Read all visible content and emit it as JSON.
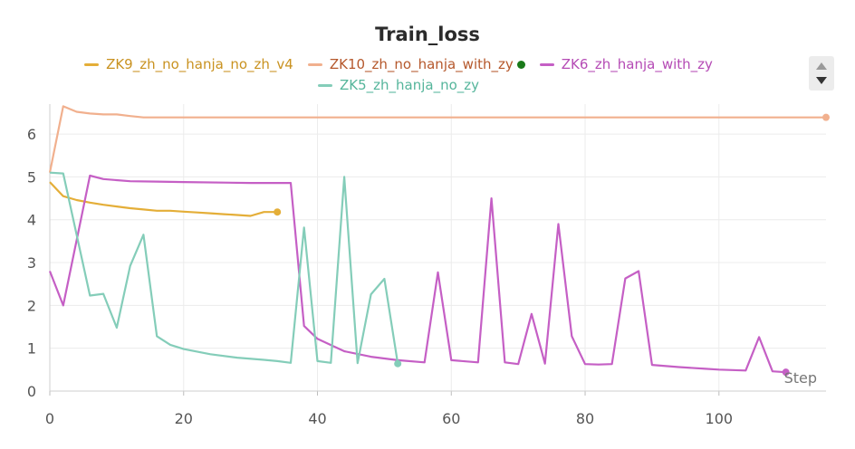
{
  "chart_data": {
    "type": "line",
    "title": "Train_loss",
    "xlabel": "Step",
    "ylabel": "",
    "xlim": [
      0,
      116
    ],
    "ylim": [
      0,
      6.7
    ],
    "x_ticks": [
      0,
      20,
      40,
      60,
      80,
      100
    ],
    "y_ticks": [
      0,
      1,
      2,
      3,
      4,
      5,
      6
    ],
    "grid": true,
    "legend_position": "top",
    "series": [
      {
        "name": "ZK9_zh_no_hanja_no_zh_v4",
        "color": "#e4ae38",
        "x": [
          0,
          2,
          4,
          6,
          8,
          10,
          12,
          14,
          16,
          18,
          20,
          22,
          24,
          26,
          28,
          30,
          32,
          34
        ],
        "y": [
          4.88,
          4.55,
          4.46,
          4.4,
          4.35,
          4.31,
          4.27,
          4.24,
          4.21,
          4.21,
          4.19,
          4.17,
          4.15,
          4.13,
          4.11,
          4.09,
          4.18,
          4.18
        ]
      },
      {
        "name": "ZK10_zh_no_hanja_with_zy",
        "color": "#f1b08e",
        "x": [
          0,
          2,
          4,
          6,
          8,
          10,
          12,
          14,
          20,
          40,
          60,
          80,
          100,
          116
        ],
        "y": [
          5.1,
          6.65,
          6.52,
          6.48,
          6.46,
          6.46,
          6.42,
          6.39,
          6.39,
          6.39,
          6.39,
          6.39,
          6.39,
          6.39
        ]
      },
      {
        "name": "ZK6_zh_hanja_with_zy",
        "color": "#c55fc5",
        "x": [
          0,
          2,
          6,
          8,
          12,
          16,
          20,
          30,
          36,
          38,
          40,
          44,
          48,
          52,
          56,
          58,
          60,
          64,
          66,
          68,
          70,
          72,
          74,
          76,
          78,
          80,
          82,
          84,
          86,
          88,
          90,
          94,
          98,
          100,
          102,
          104,
          106,
          108,
          110
        ],
        "y": [
          2.8,
          2.0,
          5.03,
          4.95,
          4.9,
          4.89,
          4.88,
          4.86,
          4.86,
          1.52,
          1.22,
          0.93,
          0.8,
          0.72,
          0.67,
          2.77,
          0.72,
          0.67,
          4.5,
          0.67,
          0.63,
          1.8,
          0.64,
          3.9,
          1.28,
          0.63,
          0.62,
          0.63,
          2.63,
          2.8,
          0.61,
          0.56,
          0.52,
          0.5,
          0.49,
          0.48,
          1.26,
          0.46,
          0.44
        ]
      },
      {
        "name": "ZK5_zh_hanja_no_zy",
        "color": "#84cdb9",
        "x": [
          0,
          2,
          6,
          8,
          10,
          12,
          14,
          16,
          18,
          20,
          24,
          28,
          32,
          34,
          36,
          38,
          40,
          42,
          44,
          46,
          48,
          50,
          52
        ],
        "y": [
          5.1,
          5.08,
          2.23,
          2.27,
          1.48,
          2.92,
          3.65,
          1.28,
          1.08,
          0.98,
          0.86,
          0.78,
          0.73,
          0.7,
          0.66,
          3.82,
          0.7,
          0.66,
          5.0,
          0.65,
          2.26,
          2.62,
          0.64
        ]
      }
    ]
  },
  "ui": {
    "scroll_up": "triangle-up-icon",
    "scroll_down": "triangle-down-icon"
  },
  "legend": {
    "active_dot_color": "#1a7a1a"
  }
}
